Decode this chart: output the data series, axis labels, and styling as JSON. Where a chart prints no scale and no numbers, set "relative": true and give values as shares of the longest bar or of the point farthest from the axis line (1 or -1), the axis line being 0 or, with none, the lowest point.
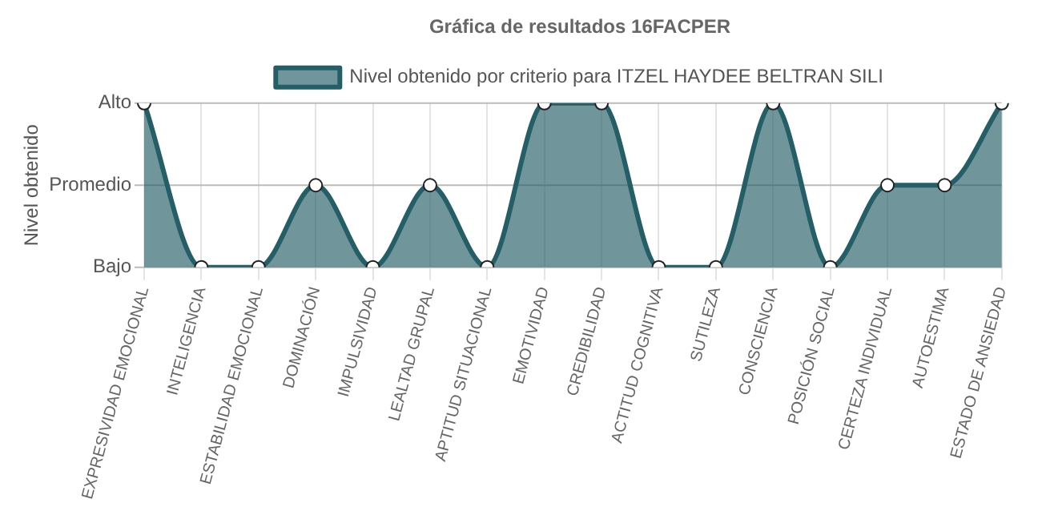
{
  "chart_data": {
    "type": "area",
    "title": "Gráfica de resultados 16FACPER",
    "ylabel": "Nivel obtenido",
    "categories": [
      "EXPRESIVIDAD EMOCIONAL",
      "INTELIGENCIA",
      "ESTABILIDAD EMOCIONAL",
      "DOMINACIÓN",
      "IMPULSIVIDAD",
      "LEALTAD GRUPAL",
      "APTITUD SITUACIONAL",
      "EMOTIVIDAD",
      "CREDIBILIDAD",
      "ACTITUD COGNITIVA",
      "SUTILEZA",
      "CONSCIENCIA",
      "POSICIÓN SOCIAL",
      "CERTEZA INDIVIDUAL",
      "AUTOESTIMA",
      "ESTADO DE ANSIEDAD"
    ],
    "series": [
      {
        "name": "Nivel obtenido por criterio para ITZEL HAYDEE BELTRAN SILI",
        "color": "#245e66",
        "values": [
          1,
          0,
          0,
          0.5,
          0,
          0.5,
          0,
          1,
          1,
          0,
          0,
          1,
          0,
          0.5,
          0.5,
          1
        ]
      }
    ],
    "relative": true,
    "ref_lines": [
      {
        "axis": "y",
        "value": 0,
        "label": "Bajo",
        "color": "#bbbbbb"
      },
      {
        "axis": "y",
        "value": 0.5,
        "label": "Promedio",
        "color": "#bbbbbb"
      },
      {
        "axis": "y",
        "value": 1,
        "label": "Alto",
        "color": "#bbbbbb"
      }
    ],
    "grid": "x",
    "legend": "top",
    "marker": "circle"
  }
}
